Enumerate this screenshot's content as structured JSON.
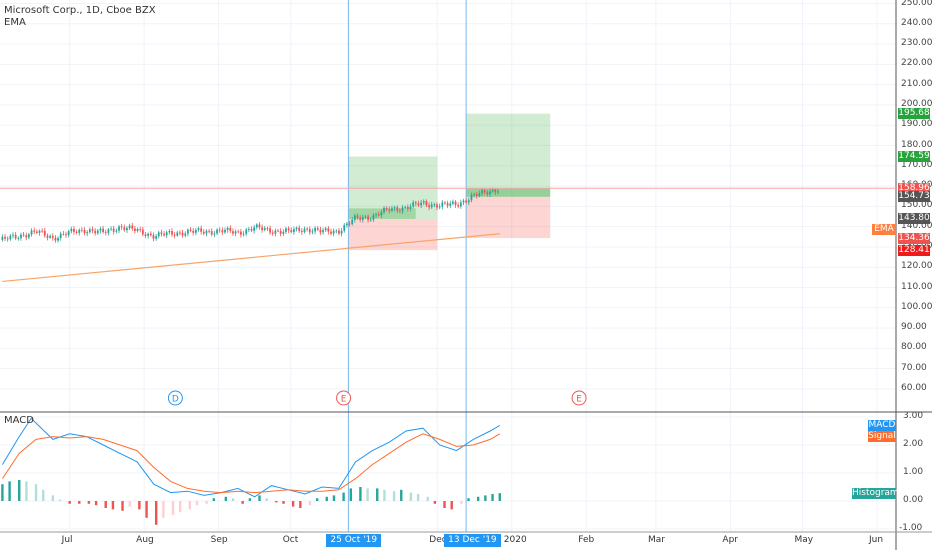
{
  "header": {
    "title": "Microsoft Corp., 1D, Cboe BZX",
    "indicator": "EMA"
  },
  "macd_panel": {
    "title": "MACD"
  },
  "price_tags": [
    {
      "label": "195.68",
      "value": 195.68,
      "color": "#26a33a"
    },
    {
      "label": "174.59",
      "value": 174.59,
      "color": "#26a33a"
    },
    {
      "label": "158.96",
      "value": 158.96,
      "color": "#ef5350"
    },
    {
      "label": "154.73",
      "value": 154.73,
      "color": "#555555"
    },
    {
      "label": "143.80",
      "value": 143.8,
      "color": "#555555"
    },
    {
      "label": "134.36",
      "value": 134.36,
      "color": "#ef5350"
    },
    {
      "label": "128.41",
      "value": 128.41,
      "color": "#ef1b1b"
    }
  ],
  "ema_tag": {
    "label": "EMA",
    "color": "#ff7f3f"
  },
  "macd_tags": [
    {
      "label": "MACD",
      "color": "#2196f3"
    },
    {
      "label": "Signal",
      "color": "#ff6d2e"
    },
    {
      "label": "Histogram",
      "color": "#26a69a"
    }
  ],
  "date_tags": [
    {
      "label": "25 Oct '19",
      "date": "2019-10-25"
    },
    {
      "label": "13 Dec '19",
      "date": "2019-12-13"
    }
  ],
  "event_markers": [
    {
      "label": "E",
      "date": "2019-04-24",
      "color": "#ef5350"
    },
    {
      "label": "D",
      "date": "2019-08-14",
      "color": "#2196f3"
    },
    {
      "label": "E",
      "date": "2019-10-23",
      "color": "#ef5350"
    },
    {
      "label": "E",
      "date": "2020-01-29",
      "color": "#ef5350"
    }
  ],
  "chart_data": [
    {
      "type": "candlestick",
      "title": "Microsoft Corp., 1D, Cboe BZX",
      "ylim": [
        50,
        250
      ],
      "y_ticks": [
        "60.00",
        "70.00",
        "80.00",
        "90.00",
        "100.00",
        "110.00",
        "120.00",
        "130.00",
        "140.00",
        "150.00",
        "160.00",
        "170.00",
        "180.00",
        "190.00",
        "200.00",
        "210.00",
        "220.00",
        "230.00",
        "240.00",
        "250.00"
      ],
      "x_ticks": [
        {
          "label": "Jul",
          "date": "2019-07-01"
        },
        {
          "label": "Aug",
          "date": "2019-08-01"
        },
        {
          "label": "Sep",
          "date": "2019-09-01"
        },
        {
          "label": "Oct",
          "date": "2019-10-01"
        },
        {
          "label": "Dec",
          "date": "2019-12-01"
        },
        {
          "label": "2020",
          "date": "2020-01-01"
        },
        {
          "label": "Feb",
          "date": "2020-02-01"
        },
        {
          "label": "Mar",
          "date": "2020-03-01"
        },
        {
          "label": "Apr",
          "date": "2020-04-01"
        },
        {
          "label": "May",
          "date": "2020-05-01"
        },
        {
          "label": "Jun",
          "date": "2020-06-01"
        }
      ],
      "close_path": [
        [
          "2019-06-03",
          133.5
        ],
        [
          "2019-06-10",
          135.5
        ],
        [
          "2019-06-17",
          137.5
        ],
        [
          "2019-06-24",
          134.5
        ],
        [
          "2019-07-01",
          137.0
        ],
        [
          "2019-07-08",
          138.5
        ],
        [
          "2019-07-15",
          137.0
        ],
        [
          "2019-07-22",
          140.0
        ],
        [
          "2019-07-29",
          138.0
        ],
        [
          "2019-08-05",
          135.5
        ],
        [
          "2019-08-12",
          136.5
        ],
        [
          "2019-08-19",
          137.5
        ],
        [
          "2019-08-26",
          137.5
        ],
        [
          "2019-09-02",
          138.0
        ],
        [
          "2019-09-09",
          137.0
        ],
        [
          "2019-09-16",
          139.5
        ],
        [
          "2019-09-23",
          138.0
        ],
        [
          "2019-09-30",
          137.5
        ],
        [
          "2019-10-07",
          139.0
        ],
        [
          "2019-10-14",
          137.5
        ],
        [
          "2019-10-21",
          138.0
        ],
        [
          "2019-10-28",
          144.0
        ],
        [
          "2019-11-04",
          145.0
        ],
        [
          "2019-11-11",
          148.5
        ],
        [
          "2019-11-18",
          149.5
        ],
        [
          "2019-11-25",
          151.5
        ],
        [
          "2019-12-02",
          150.5
        ],
        [
          "2019-12-09",
          151.0
        ],
        [
          "2019-12-16",
          155.0
        ],
        [
          "2019-12-23",
          157.5
        ],
        [
          "2019-12-27",
          158.96
        ]
      ],
      "ema_line": [
        [
          "2019-06-03",
          113.0
        ],
        [
          "2019-12-27",
          136.5
        ]
      ],
      "current_price": 158.96,
      "positions": [
        {
          "type": "long",
          "start": "2019-10-25",
          "end": "2019-12-01",
          "entry": 143.8,
          "target": 174.59,
          "stop": 128.41
        },
        {
          "type": "long",
          "start": "2019-12-13",
          "end": "2020-01-17",
          "entry": 154.73,
          "target": 195.68,
          "stop": 134.36
        }
      ]
    },
    {
      "type": "macd",
      "title": "MACD",
      "ylim": [
        -1.2,
        3.3
      ],
      "y_ticks": [
        "-1.00",
        "0.00",
        "1.00",
        "2.00",
        "3.00"
      ],
      "series": [
        {
          "name": "MACD",
          "color": "#2196f3",
          "points": [
            [
              "2019-06-03",
              1.3
            ],
            [
              "2019-06-10",
              2.3
            ],
            [
              "2019-06-15",
              2.95
            ],
            [
              "2019-06-18",
              2.7
            ],
            [
              "2019-06-24",
              2.2
            ],
            [
              "2019-07-01",
              2.4
            ],
            [
              "2019-07-08",
              2.3
            ],
            [
              "2019-07-15",
              2.0
            ],
            [
              "2019-07-22",
              1.7
            ],
            [
              "2019-07-29",
              1.4
            ],
            [
              "2019-08-05",
              0.6
            ],
            [
              "2019-08-12",
              0.3
            ],
            [
              "2019-08-19",
              0.35
            ],
            [
              "2019-08-26",
              0.2
            ],
            [
              "2019-09-02",
              0.3
            ],
            [
              "2019-09-09",
              0.45
            ],
            [
              "2019-09-16",
              0.15
            ],
            [
              "2019-09-23",
              0.55
            ],
            [
              "2019-09-30",
              0.4
            ],
            [
              "2019-10-07",
              0.25
            ],
            [
              "2019-10-14",
              0.5
            ],
            [
              "2019-10-21",
              0.45
            ],
            [
              "2019-10-28",
              1.4
            ],
            [
              "2019-11-04",
              1.8
            ],
            [
              "2019-11-11",
              2.1
            ],
            [
              "2019-11-18",
              2.5
            ],
            [
              "2019-11-25",
              2.6
            ],
            [
              "2019-12-02",
              2.0
            ],
            [
              "2019-12-09",
              1.8
            ],
            [
              "2019-12-16",
              2.2
            ],
            [
              "2019-12-23",
              2.5
            ],
            [
              "2019-12-27",
              2.7
            ]
          ]
        },
        {
          "name": "Signal",
          "color": "#ff6d2e",
          "points": [
            [
              "2019-06-03",
              0.8
            ],
            [
              "2019-06-10",
              1.7
            ],
            [
              "2019-06-17",
              2.2
            ],
            [
              "2019-06-24",
              2.3
            ],
            [
              "2019-07-01",
              2.25
            ],
            [
              "2019-07-08",
              2.3
            ],
            [
              "2019-07-15",
              2.2
            ],
            [
              "2019-07-22",
              2.0
            ],
            [
              "2019-07-29",
              1.8
            ],
            [
              "2019-08-05",
              1.2
            ],
            [
              "2019-08-12",
              0.7
            ],
            [
              "2019-08-19",
              0.45
            ],
            [
              "2019-08-26",
              0.35
            ],
            [
              "2019-09-02",
              0.3
            ],
            [
              "2019-09-09",
              0.35
            ],
            [
              "2019-09-16",
              0.3
            ],
            [
              "2019-09-23",
              0.35
            ],
            [
              "2019-09-30",
              0.4
            ],
            [
              "2019-10-07",
              0.35
            ],
            [
              "2019-10-14",
              0.35
            ],
            [
              "2019-10-21",
              0.4
            ],
            [
              "2019-10-28",
              0.8
            ],
            [
              "2019-11-04",
              1.3
            ],
            [
              "2019-11-11",
              1.7
            ],
            [
              "2019-11-18",
              2.1
            ],
            [
              "2019-11-25",
              2.4
            ],
            [
              "2019-12-02",
              2.2
            ],
            [
              "2019-12-09",
              1.95
            ],
            [
              "2019-12-16",
              2.0
            ],
            [
              "2019-12-23",
              2.2
            ],
            [
              "2019-12-27",
              2.4
            ]
          ]
        }
      ],
      "histogram": [
        [
          "2019-06-03",
          0.6
        ],
        [
          "2019-06-06",
          0.7
        ],
        [
          "2019-06-10",
          0.75
        ],
        [
          "2019-06-13",
          0.7
        ],
        [
          "2019-06-17",
          0.6
        ],
        [
          "2019-06-20",
          0.4
        ],
        [
          "2019-06-24",
          0.2
        ],
        [
          "2019-06-27",
          0.05
        ],
        [
          "2019-07-01",
          -0.1
        ],
        [
          "2019-07-05",
          -0.1
        ],
        [
          "2019-07-09",
          -0.1
        ],
        [
          "2019-07-12",
          -0.15
        ],
        [
          "2019-07-16",
          -0.25
        ],
        [
          "2019-07-19",
          -0.3
        ],
        [
          "2019-07-23",
          -0.35
        ],
        [
          "2019-07-26",
          -0.2
        ],
        [
          "2019-07-30",
          -0.3
        ],
        [
          "2019-08-02",
          -0.6
        ],
        [
          "2019-08-06",
          -0.85
        ],
        [
          "2019-08-09",
          -0.6
        ],
        [
          "2019-08-13",
          -0.5
        ],
        [
          "2019-08-16",
          -0.4
        ],
        [
          "2019-08-20",
          -0.3
        ],
        [
          "2019-08-23",
          -0.15
        ],
        [
          "2019-08-27",
          -0.1
        ],
        [
          "2019-08-30",
          0.1
        ],
        [
          "2019-09-04",
          0.15
        ],
        [
          "2019-09-07",
          0.1
        ],
        [
          "2019-09-11",
          -0.1
        ],
        [
          "2019-09-14",
          0.1
        ],
        [
          "2019-09-18",
          0.2
        ],
        [
          "2019-09-21",
          0.1
        ],
        [
          "2019-09-25",
          -0.05
        ],
        [
          "2019-09-28",
          -0.1
        ],
        [
          "2019-10-02",
          -0.2
        ],
        [
          "2019-10-05",
          -0.25
        ],
        [
          "2019-10-09",
          -0.15
        ],
        [
          "2019-10-12",
          0.1
        ],
        [
          "2019-10-16",
          0.15
        ],
        [
          "2019-10-19",
          0.2
        ],
        [
          "2019-10-23",
          0.3
        ],
        [
          "2019-10-26",
          0.45
        ],
        [
          "2019-10-30",
          0.5
        ],
        [
          "2019-11-02",
          0.45
        ],
        [
          "2019-11-06",
          0.45
        ],
        [
          "2019-11-09",
          0.4
        ],
        [
          "2019-11-13",
          0.35
        ],
        [
          "2019-11-16",
          0.4
        ],
        [
          "2019-11-20",
          0.3
        ],
        [
          "2019-11-23",
          0.25
        ],
        [
          "2019-11-27",
          0.15
        ],
        [
          "2019-11-30",
          -0.1
        ],
        [
          "2019-12-04",
          -0.25
        ],
        [
          "2019-12-07",
          -0.3
        ],
        [
          "2019-12-11",
          -0.1
        ],
        [
          "2019-12-14",
          0.1
        ],
        [
          "2019-12-18",
          0.15
        ],
        [
          "2019-12-21",
          0.2
        ],
        [
          "2019-12-24",
          0.25
        ],
        [
          "2019-12-27",
          0.28
        ]
      ]
    }
  ]
}
